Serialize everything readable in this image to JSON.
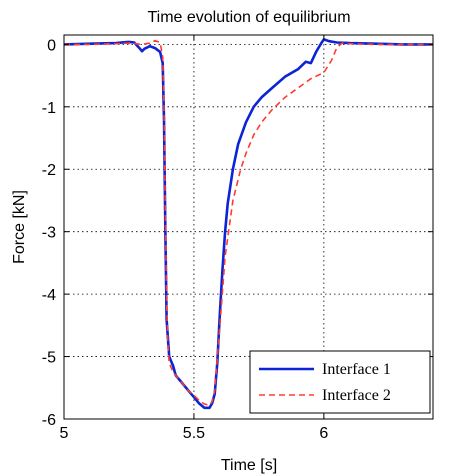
{
  "chart_data": {
    "type": "line",
    "title": "Time evolution of equilibrium",
    "xlabel": "Time [s]",
    "ylabel": "Force [kN]",
    "xlim": [
      5,
      6.42
    ],
    "ylim": [
      -6,
      0.15
    ],
    "xticks": [
      5,
      5.5,
      6
    ],
    "xtick_labels": [
      "5",
      "5.5",
      "6"
    ],
    "yticks": [
      0,
      -1,
      -2,
      -3,
      -4,
      -5,
      -6
    ],
    "ytick_labels": [
      "0",
      "-1",
      "-2",
      "-3",
      "-4",
      "-5",
      "-6"
    ],
    "grid": true,
    "legend_position": "bottom-right",
    "series": [
      {
        "name": "Interface 1",
        "color": "#0a24d6",
        "style": "solid",
        "x": [
          5.0,
          5.1,
          5.2,
          5.25,
          5.27,
          5.29,
          5.3,
          5.31,
          5.33,
          5.35,
          5.37,
          5.38,
          5.385,
          5.39,
          5.395,
          5.4,
          5.405,
          5.41,
          5.42,
          5.43,
          5.44,
          5.45,
          5.46,
          5.48,
          5.5,
          5.52,
          5.54,
          5.56,
          5.57,
          5.58,
          5.59,
          5.6,
          5.61,
          5.62,
          5.63,
          5.65,
          5.67,
          5.7,
          5.73,
          5.76,
          5.8,
          5.85,
          5.9,
          5.93,
          5.95,
          5.97,
          5.99,
          6.0,
          6.02,
          6.05,
          6.1,
          6.2,
          6.3,
          6.42
        ],
        "y": [
          0.0,
          0.01,
          0.02,
          0.04,
          0.03,
          -0.06,
          -0.11,
          -0.07,
          -0.03,
          -0.06,
          -0.12,
          -0.3,
          -1.2,
          -2.9,
          -4.4,
          -4.7,
          -5.0,
          -5.05,
          -5.15,
          -5.3,
          -5.35,
          -5.4,
          -5.45,
          -5.55,
          -5.65,
          -5.75,
          -5.82,
          -5.82,
          -5.75,
          -5.6,
          -5.1,
          -4.3,
          -3.6,
          -3.0,
          -2.55,
          -2.0,
          -1.6,
          -1.25,
          -1.0,
          -0.85,
          -0.7,
          -0.52,
          -0.4,
          -0.28,
          -0.3,
          -0.12,
          0.02,
          0.08,
          0.05,
          0.03,
          0.02,
          0.01,
          0.0,
          0.0
        ]
      },
      {
        "name": "Interface 2",
        "color": "#ff3b30",
        "style": "dashed",
        "x": [
          5.0,
          5.1,
          5.2,
          5.25,
          5.3,
          5.33,
          5.35,
          5.37,
          5.38,
          5.385,
          5.39,
          5.395,
          5.4,
          5.405,
          5.41,
          5.42,
          5.44,
          5.46,
          5.48,
          5.5,
          5.52,
          5.54,
          5.56,
          5.57,
          5.58,
          5.6,
          5.62,
          5.65,
          5.68,
          5.7,
          5.73,
          5.76,
          5.8,
          5.85,
          5.9,
          5.95,
          6.0,
          6.03,
          6.05,
          6.07,
          6.1,
          6.2,
          6.3,
          6.42
        ],
        "y": [
          0.0,
          0.0,
          0.01,
          0.02,
          0.0,
          0.02,
          0.06,
          0.03,
          -0.2,
          -1.0,
          -2.6,
          -4.1,
          -4.8,
          -5.1,
          -5.15,
          -5.25,
          -5.35,
          -5.45,
          -5.55,
          -5.62,
          -5.7,
          -5.76,
          -5.78,
          -5.72,
          -5.55,
          -4.5,
          -3.4,
          -2.5,
          -2.0,
          -1.75,
          -1.45,
          -1.25,
          -1.05,
          -0.85,
          -0.7,
          -0.55,
          -0.45,
          -0.25,
          -0.05,
          0.02,
          0.01,
          0.0,
          0.0,
          0.0
        ]
      }
    ]
  }
}
